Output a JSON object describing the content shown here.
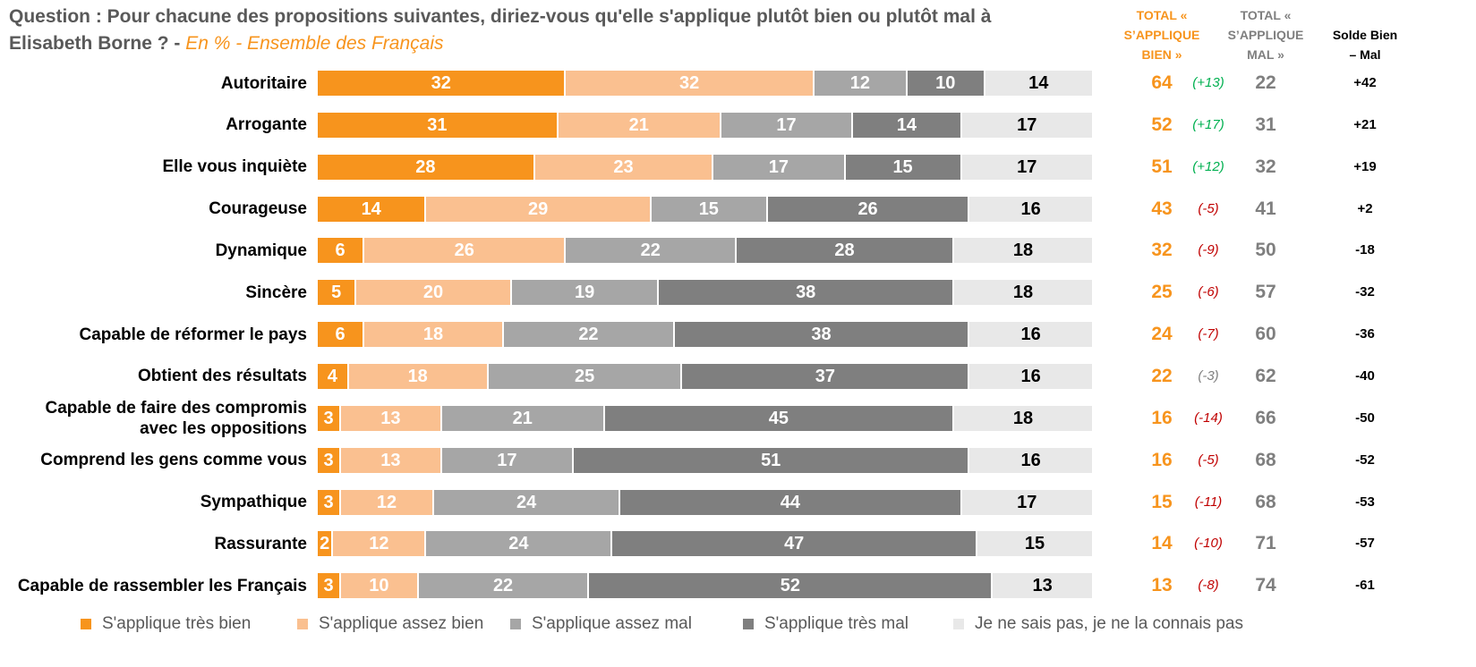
{
  "chart_data": {
    "type": "bar",
    "orientation": "horizontal",
    "stacked": true,
    "title": "Question : Pour chacune des propositions suivantes, diriez-vous qu'elle s'applique plutôt bien ou plutôt mal à Elisabeth Borne ? -",
    "subtitle": "En % - Ensemble des Français",
    "categories": [
      "Autoritaire",
      "Arrogante",
      "Elle vous inquiète",
      "Courageuse",
      "Dynamique",
      "Sincère",
      "Capable de réformer le pays",
      "Obtient des résultats",
      "Capable de faire des compromis avec les oppositions",
      "Comprend les gens comme vous",
      "Sympathique",
      "Rassurante",
      "Capable de rassembler les Français"
    ],
    "xlim": [
      0,
      100
    ],
    "series": [
      {
        "name": "S'applique très bien",
        "color": "#f7941d",
        "label_color": "#ffffff",
        "values": [
          32,
          31,
          28,
          14,
          6,
          5,
          6,
          4,
          3,
          3,
          3,
          2,
          3
        ]
      },
      {
        "name": "S'applique assez bien",
        "color": "#fac090",
        "label_color": "#ffffff",
        "values": [
          32,
          21,
          23,
          29,
          26,
          20,
          18,
          18,
          13,
          13,
          12,
          12,
          10
        ]
      },
      {
        "name": "S'applique assez mal",
        "color": "#a6a6a6",
        "label_color": "#ffffff",
        "values": [
          12,
          17,
          17,
          15,
          22,
          19,
          22,
          25,
          21,
          17,
          24,
          24,
          22
        ]
      },
      {
        "name": "S'applique très mal",
        "color": "#7f7f7f",
        "label_color": "#ffffff",
        "values": [
          10,
          14,
          15,
          26,
          28,
          38,
          38,
          37,
          45,
          51,
          44,
          47,
          52
        ]
      },
      {
        "name": "Je ne sais pas, je ne la connais pas",
        "color": "#e8e8e8",
        "label_color": "#000000",
        "values": [
          14,
          17,
          17,
          16,
          18,
          18,
          16,
          16,
          18,
          16,
          17,
          15,
          13
        ]
      }
    ],
    "total_bien": {
      "header": "TOTAL « S’APPLIQUE BIEN »",
      "color": "#f7941d",
      "values": [
        64,
        52,
        51,
        43,
        32,
        25,
        24,
        22,
        16,
        16,
        15,
        14,
        13
      ]
    },
    "evolution": {
      "values": [
        13,
        17,
        12,
        -5,
        -9,
        -6,
        -7,
        -3,
        -14,
        -5,
        -11,
        -10,
        -8
      ],
      "value_labels": [
        "(+13)",
        "(+17)",
        "(+12)",
        "(-5)",
        "(-9)",
        "(-6)",
        "(-7)",
        "(-3)",
        "(-14)",
        "(-5)",
        "(-11)",
        "(-10)",
        "(-8)"
      ],
      "colors": [
        "#00b050",
        "#00b050",
        "#00b050",
        "#c00000",
        "#c00000",
        "#c00000",
        "#c00000",
        "#7f7f7f",
        "#c00000",
        "#c00000",
        "#c00000",
        "#c00000",
        "#c00000"
      ]
    },
    "total_mal": {
      "header": "TOTAL « S’APPLIQUE MAL »",
      "color": "#7f7f7f",
      "values": [
        22,
        31,
        32,
        41,
        50,
        57,
        60,
        62,
        66,
        68,
        68,
        71,
        74
      ]
    },
    "solde": {
      "header": "Solde Bien – Mal",
      "color": "#000000",
      "values": [
        42,
        21,
        19,
        2,
        -18,
        -32,
        -36,
        -40,
        -50,
        -52,
        -53,
        -57,
        -61
      ],
      "value_labels": [
        "+42",
        "+21",
        "+19",
        "+2",
        "-18",
        "-32",
        "-36",
        "-40",
        "-50",
        "-52",
        "-53",
        "-57",
        "-61"
      ]
    }
  }
}
